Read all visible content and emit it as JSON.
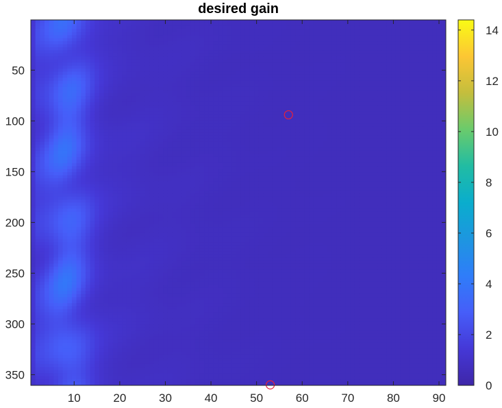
{
  "chart_data": {
    "type": "heatmap",
    "title": "desired gain",
    "xlabel": "",
    "ylabel": "",
    "x_range": [
      0.5,
      91.5
    ],
    "y_range": [
      0.5,
      360.5
    ],
    "y_reversed": true,
    "x_ticks": [
      10,
      20,
      30,
      40,
      50,
      60,
      70,
      80,
      90
    ],
    "y_ticks": [
      50,
      100,
      150,
      200,
      250,
      300,
      350
    ],
    "colorbar": {
      "limits": [
        0,
        14.4
      ],
      "ticks": [
        0,
        2,
        4,
        6,
        8,
        10,
        12,
        14
      ],
      "colormap": "parula"
    },
    "markers": [
      {
        "x": 57,
        "y": 94,
        "shape": "circle",
        "color": "#e8203a"
      },
      {
        "x": 53,
        "y": 360,
        "shape": "circle",
        "color": "#e8203a"
      }
    ],
    "value_summary": {
      "background": 0.6,
      "peak_region_x": [
        3,
        14
      ],
      "peak_value": 3.2
    }
  }
}
